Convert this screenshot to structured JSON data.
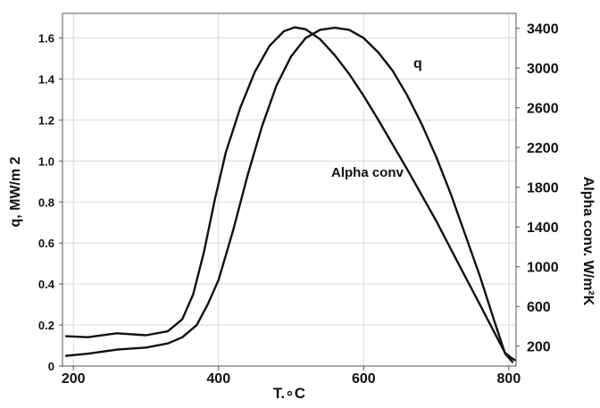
{
  "chart_data": {
    "type": "line",
    "title": "",
    "xlabel": "T.∘C",
    "ylabel": "q, MW/m 2",
    "ylabel_right": "Alpha conv. W/m²K",
    "xlim": [
      185,
      810
    ],
    "ylim": [
      0,
      1.72
    ],
    "ylim_right": [
      0,
      3550
    ],
    "x_ticks": [
      200,
      400,
      600,
      800
    ],
    "y_ticks": [
      0,
      0.2,
      0.4,
      0.6,
      0.8,
      1.0,
      1.2,
      1.4,
      1.6
    ],
    "y_tick_labels": [
      "0",
      "0.2",
      "0.4",
      "0.6",
      "0.8",
      "1.0",
      "1.2",
      "1.4",
      "1.6"
    ],
    "y_right_ticks": [
      200,
      600,
      1000,
      1400,
      1800,
      2200,
      2600,
      3000,
      3400
    ],
    "grid": true,
    "legend": "inline labels",
    "colors": {
      "line": "#111111",
      "grid": "#d9d9d9",
      "axes": "#555555"
    },
    "series": [
      {
        "name": "q",
        "axis": "left",
        "label_position": "upper-right",
        "x": [
          190,
          220,
          260,
          300,
          330,
          350,
          370,
          385,
          400,
          420,
          440,
          460,
          480,
          500,
          520,
          540,
          560,
          580,
          600,
          620,
          640,
          660,
          680,
          700,
          720,
          740,
          760,
          780,
          795,
          800,
          805
        ],
        "y": [
          0.05,
          0.06,
          0.08,
          0.09,
          0.11,
          0.14,
          0.2,
          0.3,
          0.42,
          0.66,
          0.93,
          1.17,
          1.37,
          1.51,
          1.6,
          1.64,
          1.65,
          1.64,
          1.6,
          1.53,
          1.44,
          1.32,
          1.18,
          1.02,
          0.84,
          0.64,
          0.44,
          0.22,
          0.06,
          0.04,
          0.02
        ]
      },
      {
        "name": "Alpha conv",
        "axis": "right",
        "label_position": "center-right",
        "x": [
          190,
          220,
          260,
          300,
          330,
          350,
          365,
          380,
          395,
          410,
          430,
          450,
          470,
          490,
          505,
          520,
          540,
          560,
          580,
          600,
          620,
          640,
          660,
          680,
          700,
          720,
          740,
          760,
          780,
          795,
          802,
          808
        ],
        "y": [
          300,
          290,
          330,
          310,
          350,
          470,
          720,
          1150,
          1680,
          2150,
          2600,
          2960,
          3220,
          3370,
          3410,
          3390,
          3290,
          3130,
          2940,
          2720,
          2480,
          2230,
          1980,
          1720,
          1460,
          1180,
          900,
          620,
          340,
          130,
          90,
          60
        ]
      }
    ]
  }
}
